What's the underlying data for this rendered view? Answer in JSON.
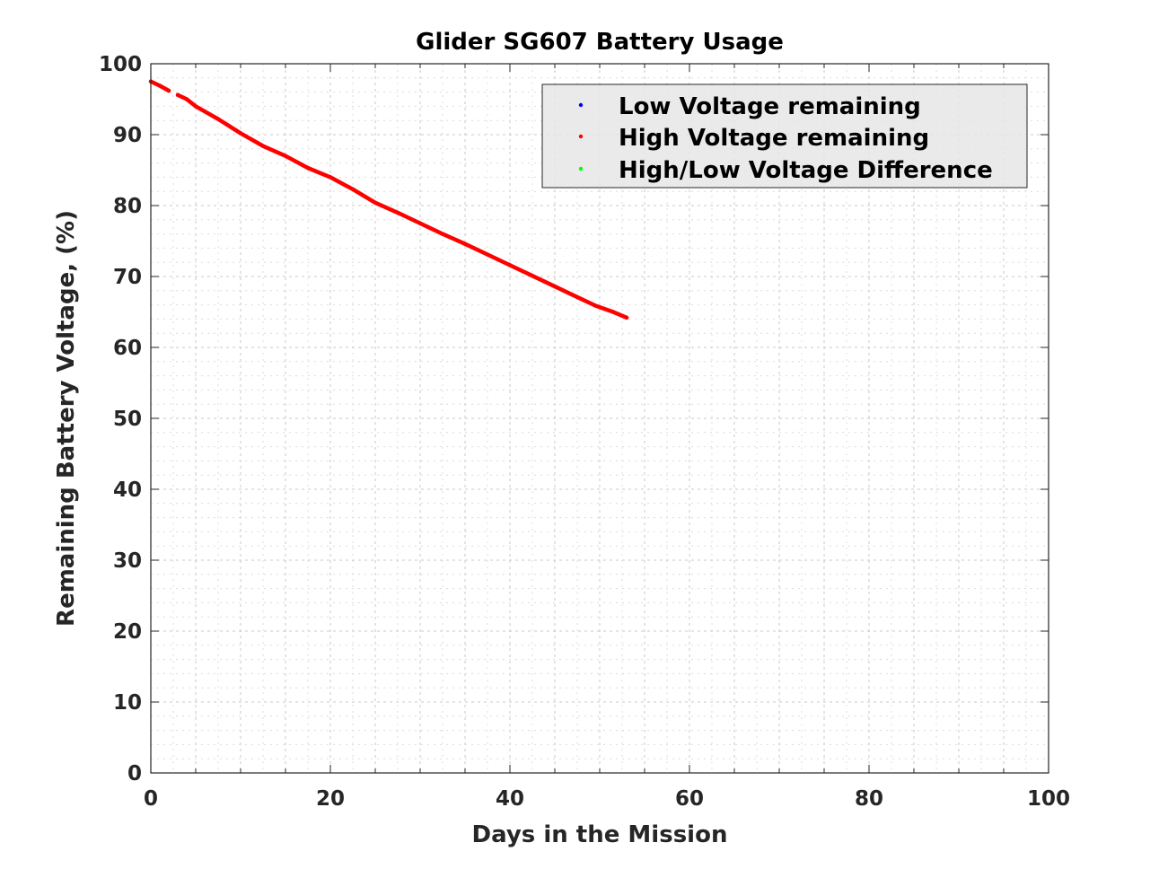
{
  "chart_data": {
    "type": "scatter",
    "title": "Glider SG607 Battery Usage",
    "xlabel": "Days in the Mission",
    "ylabel": "Remaining Battery Voltage, (%)",
    "xlim": [
      0,
      100
    ],
    "ylim": [
      0,
      100
    ],
    "xticks": [
      0,
      20,
      40,
      60,
      80,
      100
    ],
    "yticks": [
      0,
      10,
      20,
      30,
      40,
      50,
      60,
      70,
      80,
      90,
      100
    ],
    "grid": true,
    "minor_grid": true,
    "legend_position": "top-right",
    "series": [
      {
        "name": "Low Voltage remaining",
        "color": "#0000ff",
        "x": [],
        "y": []
      },
      {
        "name": "High Voltage remaining",
        "color": "#ff0000",
        "segments": [
          {
            "x": [
              0,
              1,
              2
            ],
            "y": [
              97.5,
              96.9,
              96.2
            ]
          },
          {
            "x": [
              3,
              4,
              5,
              7.5,
              10,
              12.5,
              15,
              17.5,
              20,
              22.5,
              25,
              27.5,
              30,
              32.5,
              35,
              37.5,
              40,
              42.5,
              45,
              47.5,
              49.5,
              51.5,
              53
            ],
            "y": [
              95.6,
              95.0,
              94.0,
              92.2,
              90.2,
              88.4,
              87.0,
              85.3,
              84.0,
              82.3,
              80.4,
              79.0,
              77.5,
              76.0,
              74.6,
              73.1,
              71.6,
              70.1,
              68.6,
              67.1,
              65.9,
              65.0,
              64.2
            ]
          }
        ]
      },
      {
        "name": "High/Low Voltage Difference",
        "color": "#00ff00",
        "x": [],
        "y": []
      }
    ]
  }
}
